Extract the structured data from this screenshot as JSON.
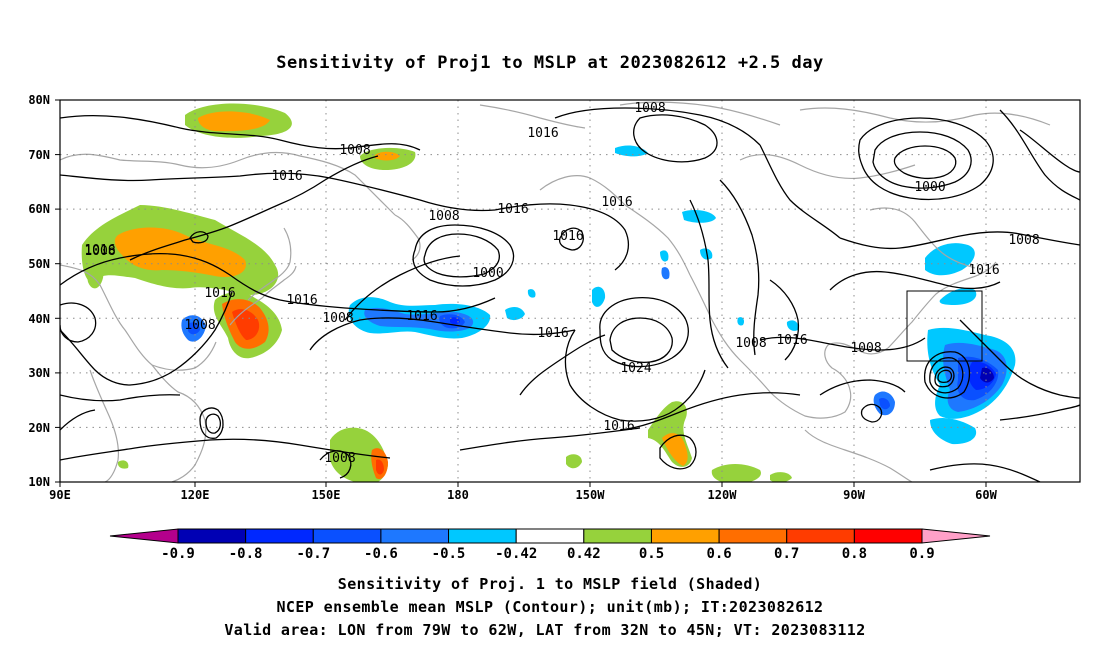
{
  "title": "Sensitivity of Proj1 to MSLP at 2023082612 +2.5 day",
  "lat_labels": [
    "80N",
    "70N",
    "60N",
    "50N",
    "40N",
    "30N",
    "20N",
    "10N"
  ],
  "lon_labels": [
    "90E",
    "120E",
    "150E",
    "180",
    "150W",
    "120W",
    "90W",
    "60W"
  ],
  "contour_labels": [
    "1008",
    "1016",
    "1008",
    "1016",
    "1016",
    "1016",
    "1008",
    "1000",
    "1016",
    "1016",
    "1008",
    "1016",
    "1016",
    "1008",
    "1016",
    "1024",
    "1016",
    "1008",
    "1008",
    "1016",
    "1008",
    "1000",
    "1008",
    "1016",
    "1008",
    "1016"
  ],
  "colorbar": {
    "labels": [
      "-0.9",
      "-0.8",
      "-0.7",
      "-0.6",
      "-0.5",
      "-0.42",
      "0.42",
      "0.5",
      "0.6",
      "0.7",
      "0.8",
      "0.9"
    ],
    "colors": [
      "#0000b4",
      "#0028ff",
      "#0a50ff",
      "#1e78ff",
      "#00c8ff",
      "#ffffff",
      "#96d23c",
      "#ffa000",
      "#ff6e00",
      "#ff3c00",
      "#ff0000"
    ],
    "low_end_color": "#b4008c",
    "high_end_color": "#ffa0c8"
  },
  "footer": {
    "line1": "Sensitivity of Proj. 1 to MSLP field (Shaded)",
    "line2": "NCEP ensemble mean MSLP (Contour); unit(mb); IT:2023082612",
    "line3": "Valid area: LON from 79W to 62W, LAT from 32N to 45N; VT: 2023083112"
  }
}
